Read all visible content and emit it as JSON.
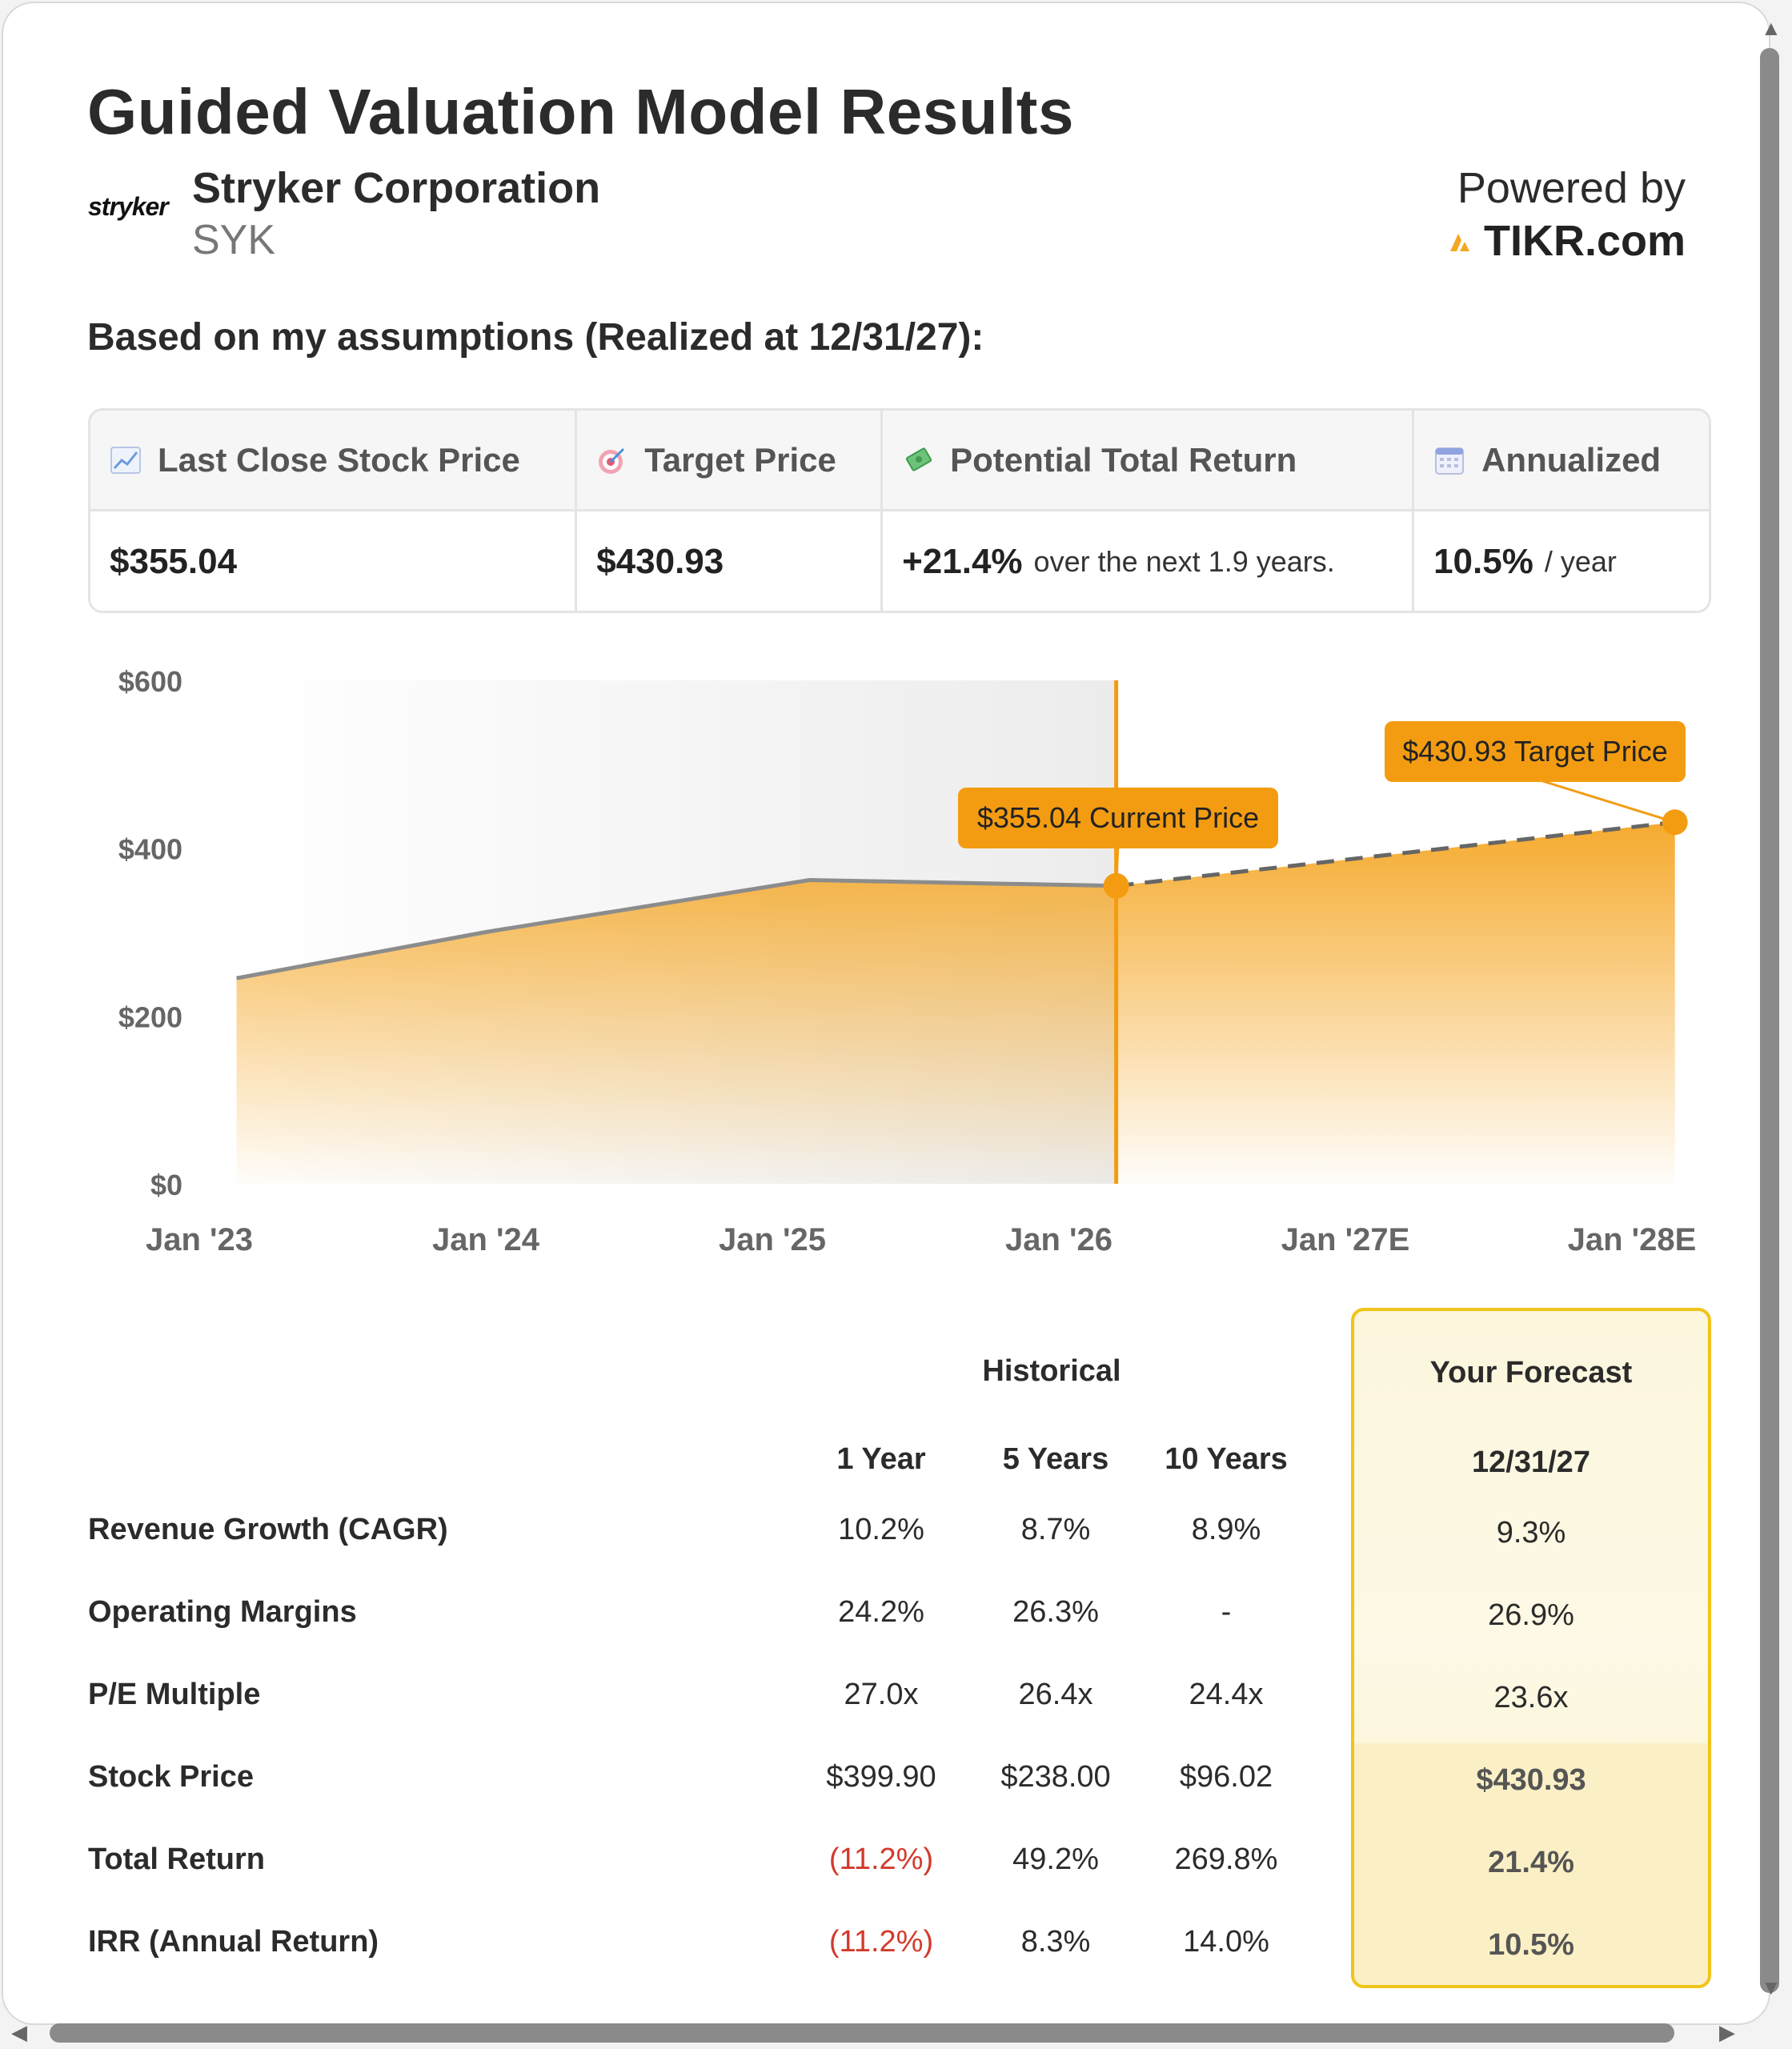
{
  "header": {
    "title": "Guided Valuation Model Results",
    "logo_text": "stryker",
    "company": "Stryker Corporation",
    "ticker": "SYK",
    "powered_by": "Powered by",
    "tikr": "TIKR.com"
  },
  "assumptions_text": "Based on my assumptions (Realized at 12/31/27):",
  "summary": {
    "headers": [
      "Last Close Stock Price",
      "Target Price",
      "Potential Total Return",
      "Annualized"
    ],
    "last_close": "$355.04",
    "target": "$430.93",
    "total_return": "+21.4%",
    "total_return_suffix": "over the next 1.9 years.",
    "annualized": "10.5%",
    "annualized_suffix": "/ year"
  },
  "chart_data": {
    "type": "area",
    "y_ticks": [
      "$600",
      "$400",
      "$200",
      "$0"
    ],
    "x_labels": [
      "Jan '23",
      "Jan '24",
      "Jan '25",
      "Jan '26",
      "Jan '27E",
      "Jan '28E"
    ],
    "ylim": [
      0,
      600
    ],
    "historical": [
      {
        "x": 0.13,
        "y": 245
      },
      {
        "x": 1.0,
        "y": 300
      },
      {
        "x": 2.13,
        "y": 362
      },
      {
        "x": 3.2,
        "y": 355.04
      }
    ],
    "forecast": [
      {
        "x": 3.2,
        "y": 355.04
      },
      {
        "x": 5.15,
        "y": 430.93
      }
    ],
    "current_label": "$355.04 Current Price",
    "target_label": "$430.93 Target Price",
    "colors": {
      "fill": "#f5a623",
      "line": "#8c8c8c",
      "accent": "#f39c12"
    }
  },
  "table": {
    "historical_header": "Historical",
    "forecast_header": "Your Forecast",
    "col_headers": [
      "1 Year",
      "5 Years",
      "10 Years"
    ],
    "forecast_date": "12/31/27",
    "rows": [
      {
        "label": "Revenue Growth (CAGR)",
        "v1": "10.2%",
        "v5": "8.7%",
        "v10": "8.9%",
        "f": "9.3%"
      },
      {
        "label": "Operating Margins",
        "v1": "24.2%",
        "v5": "26.3%",
        "v10": "-",
        "f": "26.9%"
      },
      {
        "label": "P/E Multiple",
        "v1": "27.0x",
        "v5": "26.4x",
        "v10": "24.4x",
        "f": "23.6x"
      },
      {
        "label": "Stock Price",
        "v1": "$399.90",
        "v5": "$238.00",
        "v10": "$96.02",
        "f": "$430.93"
      },
      {
        "label": "Total Return",
        "v1": "(11.2%)",
        "v5": "49.2%",
        "v10": "269.8%",
        "f": "21.4%"
      },
      {
        "label": "IRR (Annual Return)",
        "v1": "(11.2%)",
        "v5": "8.3%",
        "v10": "14.0%",
        "f": "10.5%"
      }
    ]
  }
}
